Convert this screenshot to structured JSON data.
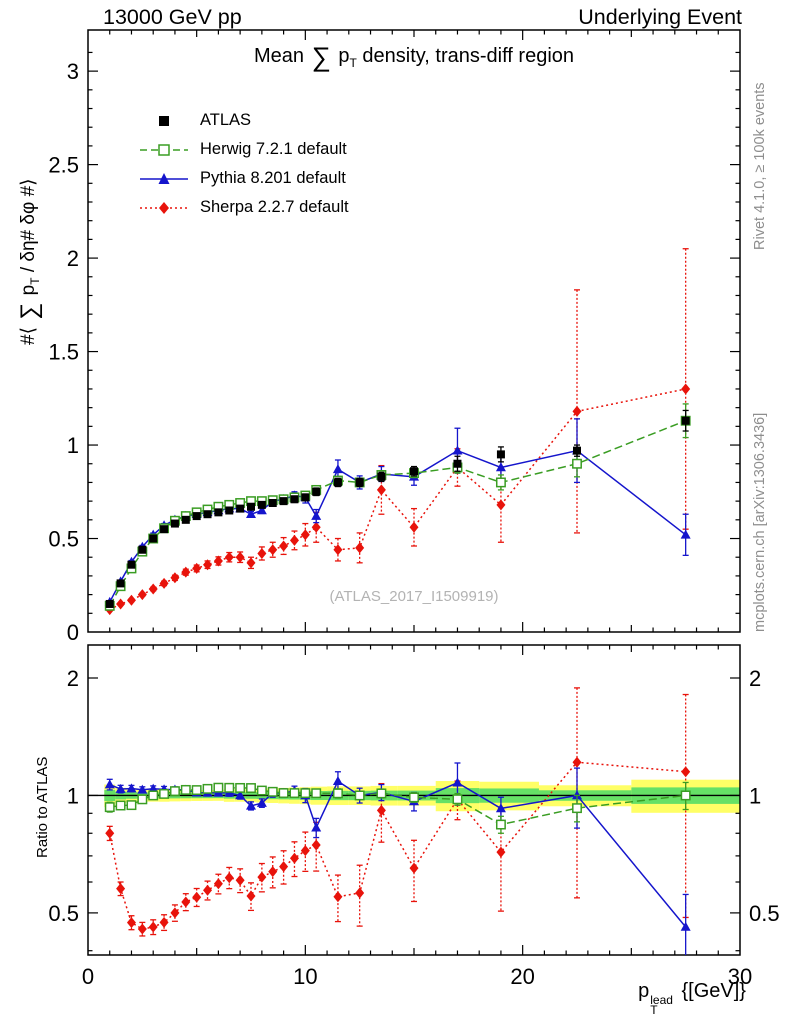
{
  "header": {
    "left": "13000 GeV pp",
    "right": "Underlying Event"
  },
  "side_text": {
    "rivet": "Rivet 4.1.0, ≥ 100k events",
    "mcplots": "mcplots.cern.ch [arXiv:1306.3436]"
  },
  "watermark": "(ATLAS_2017_I1509919)",
  "chart_data": {
    "type": "line",
    "title": "Mean ∑ p_T density, trans-diff region",
    "title_parts": {
      "pre": "Mean ",
      "sum": "∑",
      "mid": " p",
      "sub": "T",
      "post": " density, trans-diff region"
    },
    "ylabel_main": "#⟨ ∑ p_T / δη# δφ #⟩",
    "ylabel_main_parts": {
      "pre": "#⟨ ",
      "sum": "∑",
      "mid": " p",
      "sub": "T",
      "post": " / δη# δφ #⟩"
    },
    "ylabel_ratio": "Ratio to ATLAS",
    "xlabel": "p_T^lead {[GeV]}",
    "xlabel_parts": {
      "base": "p",
      "sup": "lead",
      "sub": "T",
      "rest": " {[GeV]}"
    },
    "xlim": [
      0,
      30
    ],
    "ylim_main": [
      0,
      3.22
    ],
    "ylim_ratio": [
      0.39,
      2.43
    ],
    "ratio_scale": "log",
    "x_ticks_labeled": [
      0,
      10,
      20,
      30
    ],
    "y_ticks_main": [
      0,
      0.5,
      1,
      1.5,
      2,
      2.5,
      3
    ],
    "y_ticks_ratio": [
      0.5,
      1,
      2
    ],
    "band_colors": {
      "yellow": "#ffff66",
      "green": "#66e066"
    },
    "ref_line": 1,
    "legend_position": "top-left",
    "x": [
      1,
      1.5,
      2,
      2.5,
      3,
      3.5,
      4,
      4.5,
      5,
      5.5,
      6,
      6.5,
      7,
      7.5,
      8,
      8.5,
      9,
      9.5,
      10,
      10.5,
      11.5,
      12.5,
      13.5,
      15,
      17,
      19,
      22.5,
      27.5
    ],
    "series": [
      {
        "name": "ATLAS",
        "color": "#000000",
        "marker": "square-filled",
        "line": "none",
        "values": [
          0.15,
          0.26,
          0.36,
          0.44,
          0.5,
          0.55,
          0.58,
          0.6,
          0.62,
          0.63,
          0.64,
          0.65,
          0.66,
          0.67,
          0.68,
          0.69,
          0.7,
          0.71,
          0.72,
          0.75,
          0.8,
          0.8,
          0.83,
          0.86,
          0.9,
          0.95,
          0.97,
          1.13
        ],
        "errors": [
          0.005,
          0.006,
          0.007,
          0.008,
          0.009,
          0.01,
          0.01,
          0.01,
          0.01,
          0.01,
          0.01,
          0.012,
          0.012,
          0.013,
          0.014,
          0.015,
          0.016,
          0.017,
          0.018,
          0.02,
          0.022,
          0.022,
          0.024,
          0.025,
          0.04,
          0.04,
          0.03,
          0.055
        ]
      },
      {
        "name": "Herwig 7.2.1 default",
        "color": "#3a9d23",
        "marker": "square-open",
        "line": "dashed",
        "values": [
          0.14,
          0.245,
          0.34,
          0.43,
          0.5,
          0.555,
          0.595,
          0.62,
          0.64,
          0.655,
          0.67,
          0.68,
          0.69,
          0.7,
          0.7,
          0.705,
          0.71,
          0.72,
          0.73,
          0.76,
          0.81,
          0.8,
          0.84,
          0.85,
          0.88,
          0.8,
          0.9,
          1.13
        ],
        "errors": [
          0.004,
          0.005,
          0.005,
          0.006,
          0.006,
          0.007,
          0.007,
          0.008,
          0.008,
          0.009,
          0.009,
          0.01,
          0.01,
          0.011,
          0.011,
          0.012,
          0.013,
          0.014,
          0.015,
          0.018,
          0.022,
          0.02,
          0.022,
          0.024,
          0.03,
          0.04,
          0.07,
          0.09
        ]
      },
      {
        "name": "Pythia 8.201 default",
        "color": "#1515cc",
        "marker": "triangle-filled",
        "line": "solid",
        "values": [
          0.16,
          0.27,
          0.375,
          0.455,
          0.52,
          0.57,
          0.6,
          0.62,
          0.63,
          0.64,
          0.65,
          0.66,
          0.66,
          0.63,
          0.65,
          0.7,
          0.71,
          0.73,
          0.72,
          0.62,
          0.87,
          0.8,
          0.845,
          0.83,
          0.97,
          0.88,
          0.97,
          0.52
        ],
        "errors": [
          0.005,
          0.006,
          0.007,
          0.008,
          0.009,
          0.01,
          0.01,
          0.01,
          0.01,
          0.012,
          0.012,
          0.013,
          0.014,
          0.015,
          0.016,
          0.017,
          0.018,
          0.02,
          0.03,
          0.035,
          0.05,
          0.035,
          0.04,
          0.045,
          0.12,
          0.06,
          0.17,
          0.11
        ]
      },
      {
        "name": "Sherpa 2.2.7 default",
        "color": "#e8130b",
        "marker": "diamond-filled",
        "line": "dotted",
        "values": [
          0.12,
          0.15,
          0.17,
          0.2,
          0.23,
          0.26,
          0.29,
          0.32,
          0.34,
          0.36,
          0.38,
          0.4,
          0.4,
          0.37,
          0.42,
          0.44,
          0.46,
          0.49,
          0.52,
          0.56,
          0.44,
          0.45,
          0.76,
          0.56,
          0.88,
          0.68,
          1.18,
          1.3
        ],
        "errors": [
          0.005,
          0.006,
          0.007,
          0.008,
          0.01,
          0.012,
          0.014,
          0.016,
          0.018,
          0.02,
          0.022,
          0.025,
          0.028,
          0.03,
          0.035,
          0.04,
          0.045,
          0.05,
          0.06,
          0.08,
          0.06,
          0.08,
          0.13,
          0.1,
          0.1,
          0.2,
          0.65,
          0.75
        ]
      }
    ]
  }
}
